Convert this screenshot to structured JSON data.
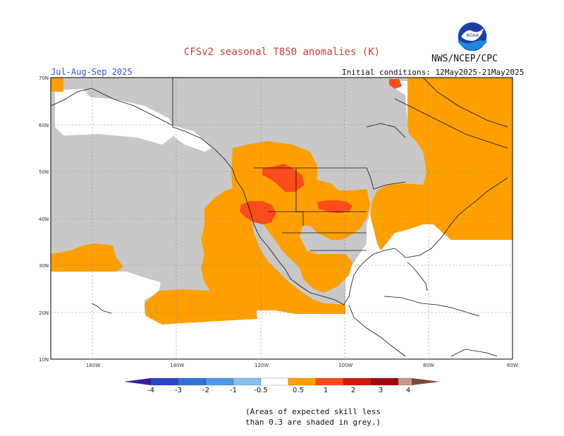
{
  "header": {
    "title": "CFSv2 seasonal T850 anomalies (K)",
    "agency": "NWS/NCEP/CPC",
    "season": "Jul-Aug-Sep 2025",
    "initial_conditions": "Initial conditions: 12May2025-21May2025",
    "logo_text": "NOAA"
  },
  "axes": {
    "lat_labels": [
      "70N",
      "60N",
      "50N",
      "40N",
      "30N",
      "20N",
      "10N"
    ],
    "lon_labels": [
      "160W",
      "140W",
      "120W",
      "100W",
      "80W",
      "60W"
    ]
  },
  "colorbar": {
    "labels": [
      "-4",
      "-3",
      "-2",
      "-1",
      "-0.5",
      "0.5",
      "1",
      "2",
      "3",
      "4"
    ],
    "colors": [
      "#3a1fa0",
      "#2b44c8",
      "#2f72dc",
      "#4d9ae8",
      "#86bff0",
      "#ffffff",
      "#ff9f00",
      "#ff4a1a",
      "#d21a0a",
      "#a00a0a",
      "#c8998a",
      "#7a4a3a"
    ]
  },
  "colors": {
    "no_skill": "#c8c8c8",
    "warm_1": "#ff9f00",
    "warm_2": "#ff4a1a",
    "title": "#d23c3c",
    "season": "#3a4fd0"
  },
  "footnote": {
    "line1": "(Areas of expected skill less",
    "line2": "than 0.3 are shaded in grey.)"
  }
}
